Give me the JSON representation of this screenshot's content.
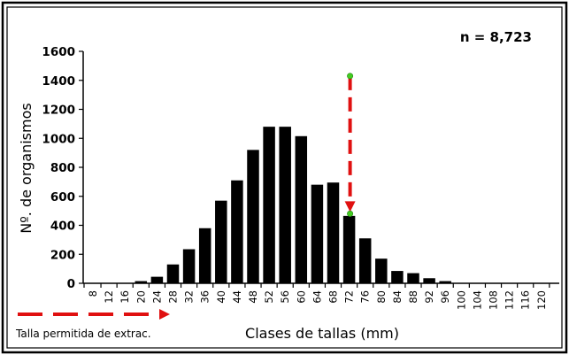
{
  "chart_data": {
    "type": "bar",
    "categories": [
      "8",
      "12",
      "16",
      "20",
      "24",
      "28",
      "32",
      "36",
      "40",
      "44",
      "48",
      "52",
      "56",
      "60",
      "64",
      "68",
      "72",
      "76",
      "80",
      "84",
      "88",
      "92",
      "96",
      "100",
      "104",
      "108",
      "112",
      "116",
      "120"
    ],
    "values": [
      0,
      0,
      0,
      15,
      45,
      130,
      235,
      380,
      570,
      710,
      920,
      1080,
      1080,
      1015,
      680,
      695,
      465,
      310,
      170,
      85,
      70,
      35,
      15,
      0,
      0,
      0,
      0,
      0,
      0
    ],
    "ylim": [
      0,
      1600
    ],
    "yticks": [
      0,
      200,
      400,
      600,
      800,
      1000,
      1200,
      1400,
      1600
    ],
    "xlabel": "Clases de tallas (mm)",
    "ylabel": "Nº. de organismos",
    "bar_color": "#000000",
    "grid": false,
    "annotations": {
      "n_label": "n = 8,723",
      "legend_label": "Talla permitida de extrac.",
      "marker_category": "72",
      "marker_top_value": 1430,
      "marker_bottom_value": 480,
      "arrow_color": "#e01010",
      "point_color": "#44cc22"
    }
  }
}
